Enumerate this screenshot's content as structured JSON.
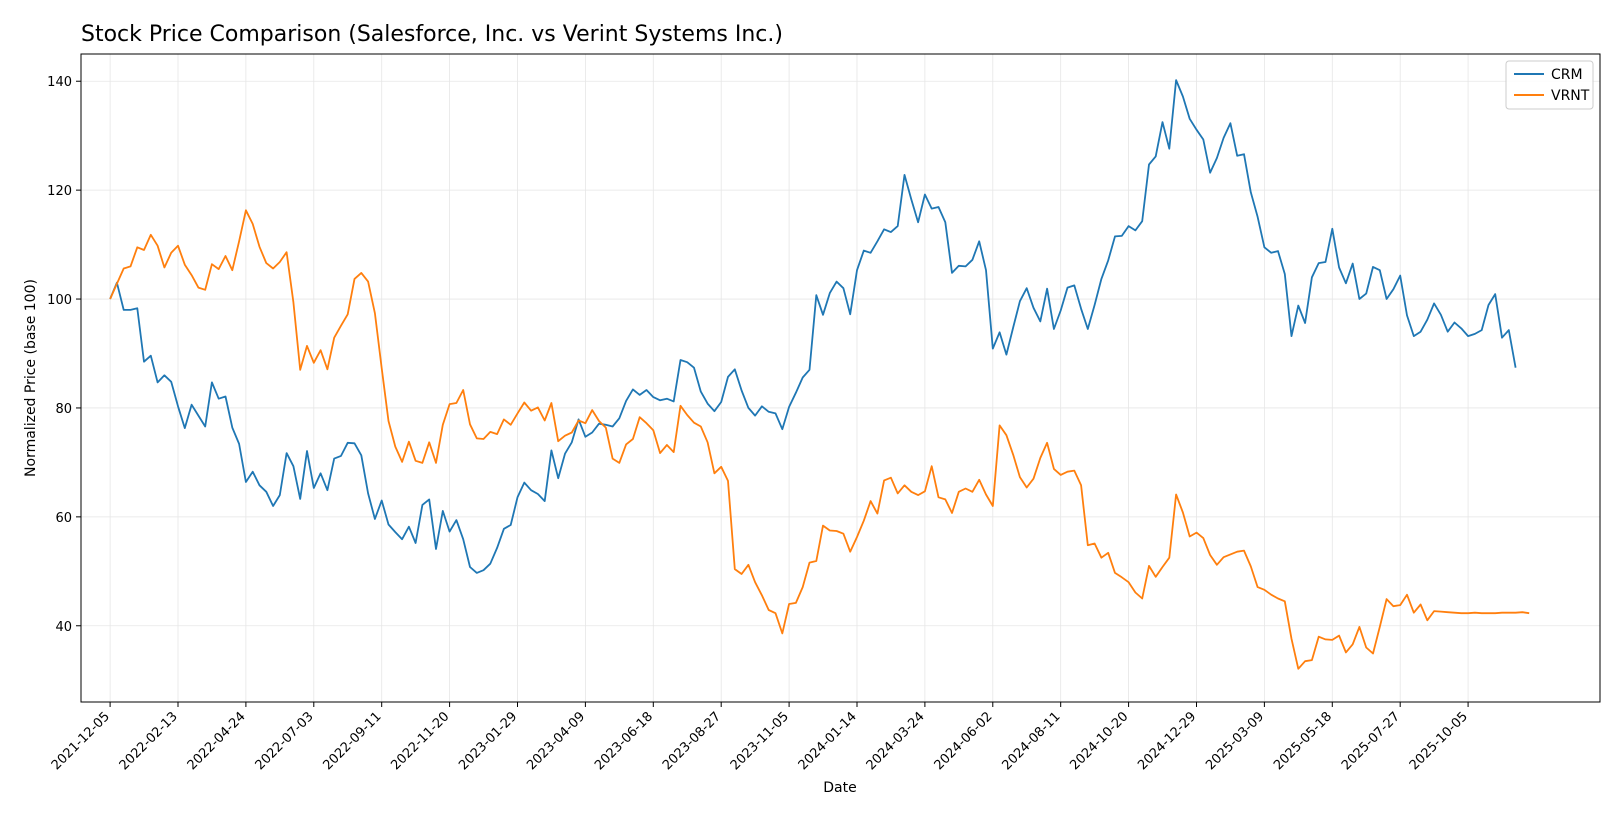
{
  "chart_data": {
    "type": "line",
    "title": "Stock Price Comparison (Salesforce, Inc. vs Verint Systems Inc.)",
    "xlabel": "Date",
    "ylabel": "Normalized Price (base 100)",
    "xlim": [
      "2021-11-05",
      "2026-02-18"
    ],
    "ylim": [
      26,
      145
    ],
    "x_ticks": [
      "2021-12-05",
      "2022-02-13",
      "2022-04-24",
      "2022-07-03",
      "2022-09-11",
      "2022-11-20",
      "2023-01-29",
      "2023-04-09",
      "2023-06-18",
      "2023-08-27",
      "2023-11-05",
      "2024-01-14",
      "2024-03-24",
      "2024-06-02",
      "2024-08-11",
      "2024-10-20",
      "2024-12-29",
      "2025-03-09",
      "2025-05-18",
      "2025-07-27",
      "2025-10-05"
    ],
    "y_ticks": [
      40,
      60,
      80,
      100,
      120,
      140
    ],
    "grid": true,
    "legend_position": "upper right",
    "x_start": "2021-12-05",
    "x_step_days": 7,
    "series": [
      {
        "name": "CRM",
        "color": "#1f77b4",
        "values": [
          100,
          103,
          98,
          98,
          98.3,
          88.5,
          89.6,
          84.7,
          86,
          84.8,
          80.3,
          76.3,
          80.6,
          78.6,
          76.6,
          84.7,
          81.7,
          82.1,
          76.4,
          73.4,
          66.4,
          68.3,
          65.8,
          64.6,
          62,
          64,
          71.7,
          69.3,
          63.3,
          72.1,
          65.3,
          68,
          64.9,
          70.7,
          71.2,
          73.6,
          73.5,
          71.3,
          64.3,
          59.6,
          63,
          58.6,
          57.2,
          55.9,
          58.2,
          55.2,
          62.2,
          63.2,
          54.1,
          61.1,
          57.3,
          59.4,
          55.9,
          50.8,
          49.7,
          50.2,
          51.4,
          54.3,
          57.8,
          58.5,
          63.6,
          66.3,
          64.9,
          64.2,
          62.9,
          72.2,
          67.1,
          71.6,
          73.7,
          77.9,
          74.7,
          75.5,
          77.1,
          76.9,
          76.6,
          78.1,
          81.3,
          83.4,
          82.4,
          83.3,
          82,
          81.4,
          81.7,
          81.2,
          88.8,
          88.4,
          87.4,
          83,
          80.8,
          79.4,
          81.1,
          85.7,
          87.1,
          83.2,
          80,
          78.6,
          80.3,
          79.3,
          79,
          76.1,
          80.2,
          82.8,
          85.6,
          87,
          100.7,
          97.1,
          101.1,
          103.2,
          102,
          97.2,
          105.3,
          108.9,
          108.5,
          110.6,
          112.8,
          112.3,
          113.4,
          122.8,
          118.3,
          114.1,
          119.2,
          116.6,
          116.9,
          114.1,
          104.8,
          106.1,
          106,
          107.2,
          110.6,
          105.3,
          90.9,
          93.9,
          89.8,
          94.8,
          99.6,
          102,
          98.4,
          95.9,
          101.9,
          94.5,
          97.9,
          102.1,
          102.5,
          98.2,
          94.5,
          98.9,
          103.7,
          107.1,
          111.5,
          111.6,
          113.4,
          112.6,
          114.3,
          124.7,
          126.2,
          132.5,
          127.6,
          140.2,
          137.2,
          133.1,
          131.1,
          129.3,
          123.2,
          125.9,
          129.6,
          132.3,
          126.3,
          126.6,
          119.6,
          115.1,
          109.5,
          108.5,
          108.8,
          104.6,
          93.2,
          98.8,
          95.6,
          104,
          106.6,
          106.8,
          112.9,
          105.8,
          102.9,
          106.5,
          100,
          101,
          105.9,
          105.3,
          100,
          101.8,
          104.3,
          97,
          93.2,
          94,
          96.2,
          99.2,
          97.1,
          94,
          95.7,
          94.6,
          93.2,
          93.6,
          94.3,
          98.9,
          100.9,
          92.9,
          94.3,
          87.4
        ]
      },
      {
        "name": "VRNT",
        "color": "#ff7f0e",
        "values": [
          100,
          102.8,
          105.6,
          106,
          109.5,
          109,
          111.8,
          109.8,
          105.8,
          108.5,
          109.8,
          106.3,
          104.4,
          102.1,
          101.7,
          106.4,
          105.5,
          107.9,
          105.3,
          110.6,
          116.3,
          113.8,
          109.6,
          106.6,
          105.6,
          106.8,
          108.6,
          99.4,
          87,
          91.4,
          88.3,
          90.6,
          87.1,
          92.9,
          95.1,
          97.2,
          103.7,
          104.8,
          103.2,
          97.4,
          87.3,
          77.6,
          72.9,
          70.1,
          73.8,
          70.3,
          69.9,
          73.7,
          69.9,
          76.9,
          80.7,
          80.9,
          83.3,
          77,
          74.4,
          74.3,
          75.6,
          75.2,
          77.9,
          76.9,
          79,
          81,
          79.5,
          80.1,
          77.7,
          80.9,
          73.9,
          74.9,
          75.5,
          77.7,
          77.2,
          79.6,
          77.6,
          76.4,
          70.7,
          69.9,
          73.3,
          74.3,
          78.3,
          77.2,
          75.9,
          71.7,
          73.2,
          71.9,
          80.4,
          78.7,
          77.3,
          76.6,
          73.7,
          68,
          69.2,
          66.6,
          50.4,
          49.5,
          51.2,
          48,
          45.6,
          42.9,
          42.3,
          38.6,
          44,
          44.2,
          47.1,
          51.6,
          51.9,
          58.4,
          57.5,
          57.4,
          56.9,
          53.6,
          56.3,
          59.3,
          62.9,
          60.6,
          66.7,
          67.2,
          64.3,
          65.8,
          64.6,
          64,
          64.7,
          69.3,
          63.6,
          63.2,
          60.7,
          64.6,
          65.2,
          64.6,
          66.8,
          64.1,
          62,
          76.8,
          75,
          71.4,
          67.3,
          65.4,
          67,
          70.8,
          73.6,
          68.8,
          67.7,
          68.3,
          68.5,
          65.8,
          54.8,
          55.1,
          52.5,
          53.4,
          49.7,
          48.9,
          48,
          46.1,
          45,
          51,
          49,
          50.8,
          52.5,
          64.1,
          60.8,
          56.4,
          57.1,
          56.1,
          53,
          51.2,
          52.6,
          53.1,
          53.6,
          53.8,
          50.9,
          47.1,
          46.6,
          45.7,
          45,
          44.5,
          37.6,
          32.1,
          33.5,
          33.7,
          38,
          37.5,
          37.4,
          38.2,
          35.1,
          36.6,
          39.8,
          36,
          34.9,
          39.8,
          44.9,
          43.6,
          43.8,
          45.7,
          42.4,
          43.9,
          41,
          42.7,
          42.6,
          42.5,
          42.4,
          42.3,
          42.3,
          42.4,
          42.3,
          42.3,
          42.3,
          42.4,
          42.4,
          42.4,
          42.5,
          42.3
        ]
      }
    ]
  }
}
